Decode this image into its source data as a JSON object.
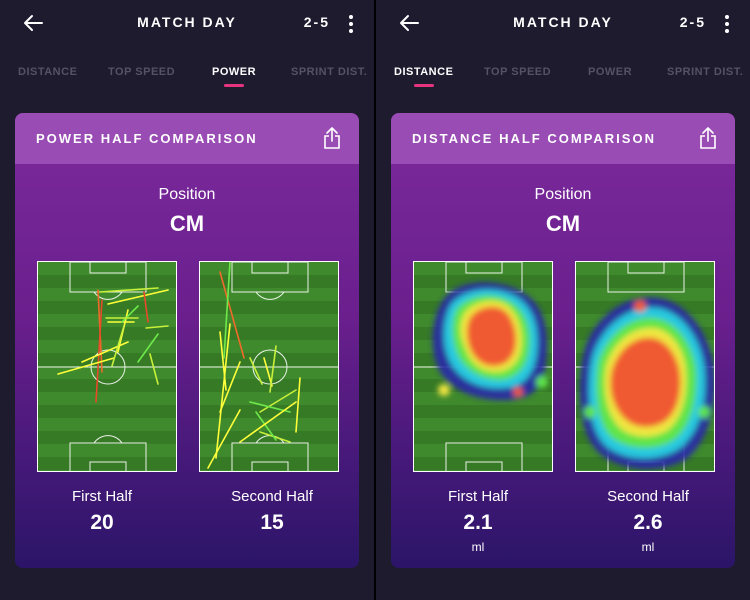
{
  "left_screen": {
    "title": "MATCH DAY",
    "score": "2-5",
    "tabs": [
      "DISTANCE",
      "TOP SPEED",
      "POWER",
      "SPRINT DIST."
    ],
    "active_tab": "POWER",
    "card": {
      "title": "POWER HALF COMPARISON",
      "position_label": "Position",
      "position_value": "CM",
      "first_half_label": "First Half",
      "first_half_value": "20",
      "second_half_label": "Second Half",
      "second_half_value": "15"
    },
    "icons": [
      "back-arrow-icon",
      "kebab-menu-icon",
      "share-icon"
    ]
  },
  "right_screen": {
    "title": "MATCH DAY",
    "score": "2-5",
    "tabs": [
      "DISTANCE",
      "TOP SPEED",
      "POWER",
      "SPRINT DIST."
    ],
    "active_tab": "DISTANCE",
    "card": {
      "title": "DISTANCE HALF COMPARISON",
      "position_label": "Position",
      "position_value": "CM",
      "first_half_label": "First Half",
      "first_half_value": "2.1",
      "first_half_unit": "ml",
      "second_half_label": "Second Half",
      "second_half_value": "2.6",
      "second_half_unit": "ml"
    },
    "icons": [
      "back-arrow-icon",
      "kebab-menu-icon",
      "share-icon"
    ]
  },
  "colors": {
    "background": "#1e1b2e",
    "tab_inactive": "#555266",
    "tab_underline": "#e8347f",
    "card_header": "#9a4cb5",
    "card_top": "#7c2a9c",
    "card_bottom": "#2b1568",
    "pitch_green": "#3f8a2c",
    "arrow_colors": [
      "#ffff3a",
      "#c8f03a",
      "#6ee84a",
      "#f06a2a",
      "#e84a2a"
    ]
  }
}
